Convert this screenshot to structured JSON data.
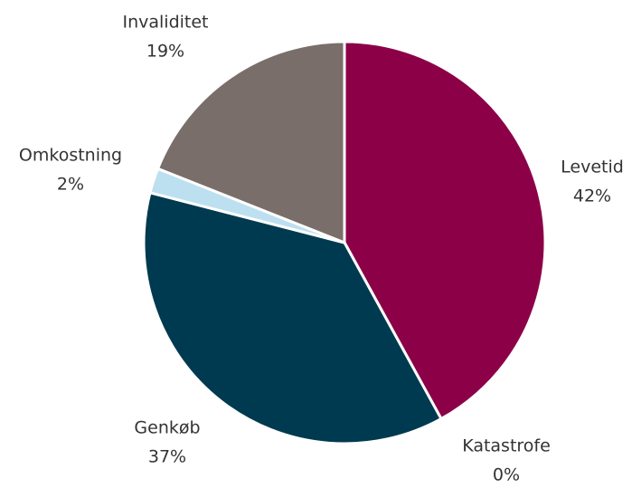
{
  "chart_data": {
    "type": "pie",
    "categories": [
      "Levetid",
      "Katastrofe",
      "Genkøb",
      "Omkostning",
      "Invaliditet"
    ],
    "values": [
      42,
      0,
      37,
      2,
      19
    ],
    "value_labels": [
      "42%",
      "0%",
      "37%",
      "2%",
      "19%"
    ],
    "colors": [
      "#8c0048",
      "#e8e8e8",
      "#003a50",
      "#bde0f0",
      "#7a6e6a"
    ]
  }
}
